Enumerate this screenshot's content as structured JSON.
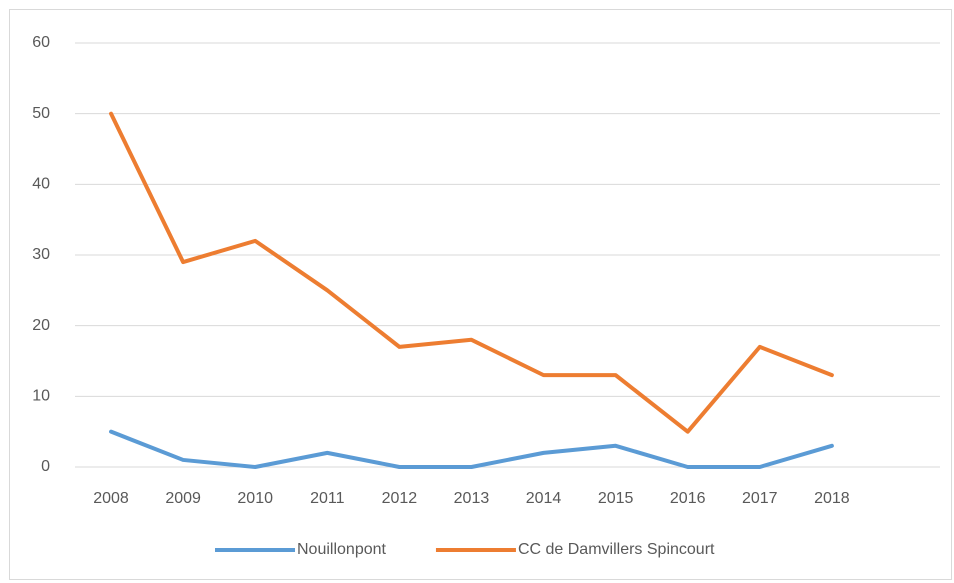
{
  "chart_data": {
    "type": "line",
    "categories": [
      "2008",
      "2009",
      "2010",
      "2011",
      "2012",
      "2013",
      "2014",
      "2015",
      "2016",
      "2017",
      "2018",
      null
    ],
    "series": [
      {
        "name": "Nouillonpont",
        "color": "#5b9bd5",
        "values": [
          5,
          1,
          0,
          2,
          0,
          0,
          2,
          3,
          0,
          0,
          3,
          null
        ]
      },
      {
        "name": "CC de Damvillers Spincourt",
        "color": "#ed7d31",
        "values": [
          50,
          29,
          32,
          25,
          17,
          18,
          13,
          13,
          5,
          17,
          13,
          null
        ]
      }
    ],
    "ylim": [
      0,
      60
    ],
    "yticks": [
      0,
      10,
      20,
      30,
      40,
      50,
      60
    ],
    "grid": true,
    "legend": "bottom"
  }
}
